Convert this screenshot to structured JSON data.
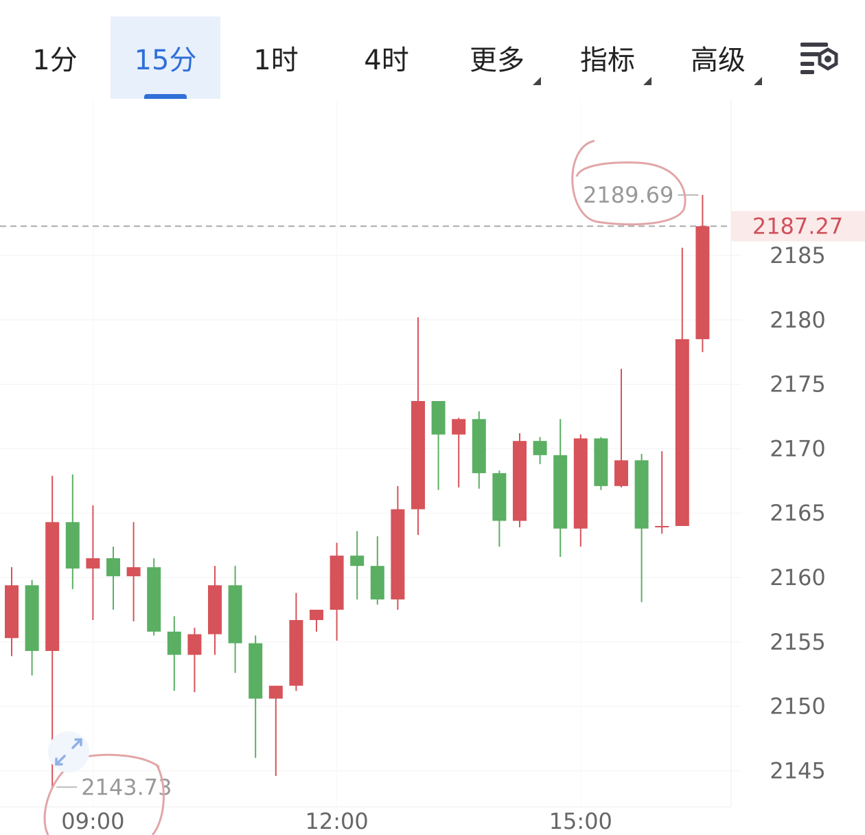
{
  "tabs": [
    {
      "label": "1分",
      "active": false,
      "dropdown": false
    },
    {
      "label": "15分",
      "active": true,
      "dropdown": false
    },
    {
      "label": "1时",
      "active": false,
      "dropdown": false
    },
    {
      "label": "4时",
      "active": false,
      "dropdown": false
    },
    {
      "label": "更多",
      "active": false,
      "dropdown": true
    },
    {
      "label": "指标",
      "active": false,
      "dropdown": true
    },
    {
      "label": "高级",
      "active": false,
      "dropdown": true
    }
  ],
  "settings_icon": "chart-settings-icon",
  "expand_icon": "expand-arrows-icon",
  "colors": {
    "up": "#d65359",
    "down": "#5aaf63",
    "accent": "#2f6fd8",
    "last_price": "#d0505a"
  },
  "chart_data": {
    "type": "candlestick",
    "y_ticks": [
      "2185",
      "2180",
      "2175",
      "2170",
      "2165",
      "2160",
      "2155",
      "2150",
      "2145"
    ],
    "ylim": [
      2142.2,
      2197.1
    ],
    "x_ticks": [
      {
        "label": "09:00",
        "index": 4
      },
      {
        "label": "12:00",
        "index": 16
      },
      {
        "label": "15:00",
        "index": 28
      }
    ],
    "last_price": "2187.27",
    "high_label": "2189.69",
    "low_label": "2143.73",
    "candles": [
      {
        "open": 2155.3,
        "high": 2160.8,
        "low": 2153.9,
        "close": 2159.4
      },
      {
        "open": 2159.4,
        "high": 2159.8,
        "low": 2152.4,
        "close": 2154.3
      },
      {
        "open": 2154.3,
        "high": 2167.9,
        "low": 2143.73,
        "close": 2164.3
      },
      {
        "open": 2164.3,
        "high": 2168.0,
        "low": 2159.1,
        "close": 2160.7
      },
      {
        "open": 2160.7,
        "high": 2165.6,
        "low": 2156.7,
        "close": 2161.5
      },
      {
        "open": 2161.5,
        "high": 2162.4,
        "low": 2157.5,
        "close": 2160.1
      },
      {
        "open": 2160.1,
        "high": 2164.3,
        "low": 2156.6,
        "close": 2160.8
      },
      {
        "open": 2160.8,
        "high": 2161.5,
        "low": 2155.5,
        "close": 2155.8
      },
      {
        "open": 2155.8,
        "high": 2157.0,
        "low": 2151.2,
        "close": 2154.0
      },
      {
        "open": 2154.0,
        "high": 2156.1,
        "low": 2151.1,
        "close": 2155.6
      },
      {
        "open": 2155.6,
        "high": 2160.9,
        "low": 2154.0,
        "close": 2159.4
      },
      {
        "open": 2159.4,
        "high": 2160.9,
        "low": 2152.6,
        "close": 2154.9
      },
      {
        "open": 2154.9,
        "high": 2155.5,
        "low": 2146.0,
        "close": 2150.6
      },
      {
        "open": 2150.6,
        "high": 2151.6,
        "low": 2144.6,
        "close": 2151.6
      },
      {
        "open": 2151.6,
        "high": 2158.8,
        "low": 2151.2,
        "close": 2156.7
      },
      {
        "open": 2156.7,
        "high": 2157.5,
        "low": 2155.8,
        "close": 2157.5
      },
      {
        "open": 2157.5,
        "high": 2162.7,
        "low": 2155.1,
        "close": 2161.7
      },
      {
        "open": 2161.7,
        "high": 2163.6,
        "low": 2158.3,
        "close": 2160.9
      },
      {
        "open": 2160.9,
        "high": 2163.2,
        "low": 2157.9,
        "close": 2158.3
      },
      {
        "open": 2158.3,
        "high": 2167.1,
        "low": 2157.5,
        "close": 2165.3
      },
      {
        "open": 2165.3,
        "high": 2180.2,
        "low": 2163.3,
        "close": 2173.7
      },
      {
        "open": 2173.7,
        "high": 2173.7,
        "low": 2166.8,
        "close": 2171.1
      },
      {
        "open": 2171.1,
        "high": 2172.4,
        "low": 2167.0,
        "close": 2172.3
      },
      {
        "open": 2172.3,
        "high": 2172.9,
        "low": 2166.9,
        "close": 2168.1
      },
      {
        "open": 2168.1,
        "high": 2168.3,
        "low": 2162.4,
        "close": 2164.4
      },
      {
        "open": 2164.4,
        "high": 2171.2,
        "low": 2163.9,
        "close": 2170.6
      },
      {
        "open": 2170.6,
        "high": 2170.9,
        "low": 2168.8,
        "close": 2169.5
      },
      {
        "open": 2169.5,
        "high": 2172.3,
        "low": 2161.6,
        "close": 2163.8
      },
      {
        "open": 2163.8,
        "high": 2171.1,
        "low": 2162.4,
        "close": 2170.8
      },
      {
        "open": 2170.8,
        "high": 2170.9,
        "low": 2166.8,
        "close": 2167.1
      },
      {
        "open": 2167.1,
        "high": 2176.2,
        "low": 2167.0,
        "close": 2169.1
      },
      {
        "open": 2169.1,
        "high": 2169.6,
        "low": 2158.1,
        "close": 2163.8
      },
      {
        "open": 2164.0,
        "high": 2169.8,
        "low": 2163.4,
        "close": 2164.0
      },
      {
        "open": 2164.0,
        "high": 2185.6,
        "low": 2164.0,
        "close": 2178.5
      },
      {
        "open": 2178.5,
        "high": 2189.69,
        "low": 2177.5,
        "close": 2187.27
      }
    ]
  }
}
